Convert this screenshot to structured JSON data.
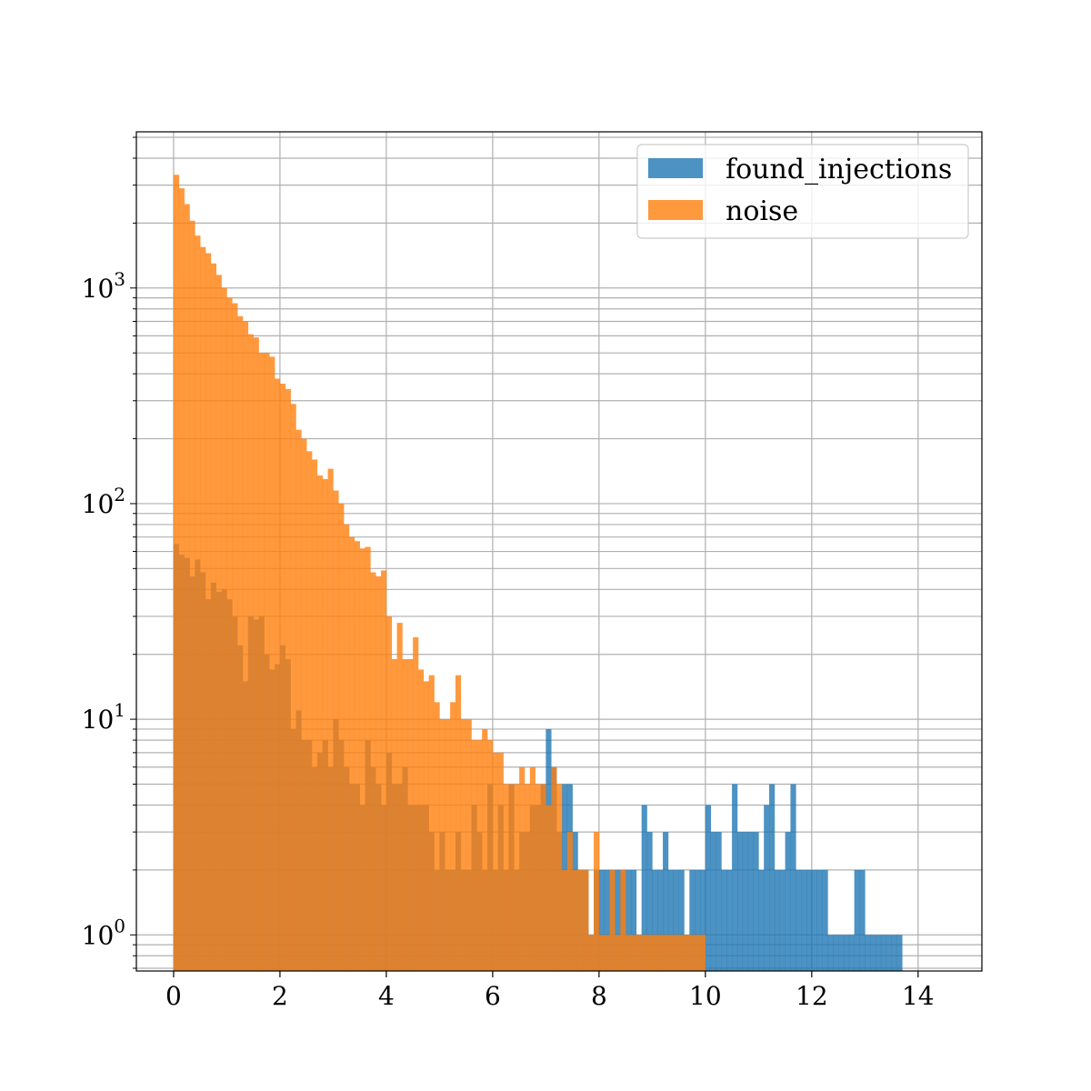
{
  "chart_data": {
    "type": "histogram",
    "xlim": [
      -0.7,
      15.2
    ],
    "ylim": [
      0.68,
      5300
    ],
    "yscale": "log",
    "grid": true,
    "legend_position": "upper right",
    "xticks": [
      0,
      2,
      4,
      6,
      8,
      10,
      12,
      14
    ],
    "xtick_labels": [
      "0",
      "2",
      "4",
      "6",
      "8",
      "10",
      "12",
      "14"
    ],
    "yticks": [
      1,
      10,
      100,
      1000
    ],
    "ytick_labels": [
      {
        "base": "10",
        "exp": "0"
      },
      {
        "base": "10",
        "exp": "1"
      },
      {
        "base": "10",
        "exp": "2"
      },
      {
        "base": "10",
        "exp": "3"
      }
    ],
    "series": [
      {
        "name": "found_injections",
        "color": "#1f77b4",
        "alpha": 0.8,
        "bin_start": 0.0,
        "bin_width": 0.1,
        "counts": [
          65,
          58,
          56,
          46,
          55,
          48,
          36,
          43,
          39,
          40,
          36,
          30,
          22,
          15,
          30,
          29,
          30,
          20,
          17,
          18,
          22,
          19,
          9,
          11,
          8,
          8,
          6,
          7,
          8,
          6,
          10,
          8,
          6,
          5,
          5,
          4,
          8,
          6,
          5,
          4,
          7,
          5,
          5,
          6,
          4,
          4,
          4,
          4,
          3,
          2,
          3,
          2,
          2,
          3,
          2,
          2,
          4,
          3,
          2,
          5,
          2,
          4,
          2,
          5,
          2,
          3,
          3,
          4,
          4,
          5,
          9,
          6,
          3,
          5,
          5,
          3,
          2,
          2,
          1,
          2,
          2,
          2,
          2,
          2,
          2,
          2,
          2,
          1,
          4,
          3,
          2,
          2,
          3,
          2,
          2,
          2,
          1,
          2,
          2,
          2,
          4,
          3,
          3,
          2,
          2,
          5,
          3,
          3,
          3,
          3,
          2,
          4,
          5,
          2,
          2,
          3,
          5,
          2,
          2,
          2,
          2,
          2,
          2,
          1,
          1,
          1,
          1,
          1,
          2,
          2,
          1,
          1,
          1,
          1,
          1,
          1,
          1,
          0,
          0,
          0
        ]
      },
      {
        "name": "noise",
        "color": "#ff7f0e",
        "alpha": 0.8,
        "bin_start": 0.0,
        "bin_width": 0.1,
        "counts": [
          3350,
          2900,
          2450,
          2050,
          1750,
          1550,
          1450,
          1300,
          1150,
          1000,
          900,
          850,
          740,
          700,
          610,
          590,
          500,
          500,
          480,
          380,
          360,
          340,
          290,
          220,
          200,
          175,
          160,
          135,
          130,
          145,
          115,
          100,
          80,
          70,
          67,
          62,
          63,
          48,
          46,
          49,
          30,
          19,
          28,
          19,
          19,
          24,
          17,
          15,
          16,
          12,
          10,
          10,
          12,
          16,
          10,
          10,
          8,
          8,
          9,
          8,
          7,
          7,
          5,
          5,
          5,
          6,
          5,
          6,
          5,
          5,
          4,
          6,
          5,
          2,
          3,
          2,
          2,
          2,
          1,
          3,
          1,
          1,
          2,
          1,
          2,
          1,
          1,
          1,
          1,
          1,
          1,
          1,
          1,
          1,
          1,
          1,
          1,
          1,
          1,
          1,
          0,
          0,
          0,
          0,
          0,
          0,
          0,
          0,
          0,
          0,
          0,
          0,
          0,
          0,
          0,
          0,
          0,
          0,
          0,
          0,
          0,
          0,
          0,
          0,
          0,
          0,
          0,
          0,
          0,
          0,
          0,
          0,
          0,
          0,
          0,
          0,
          0,
          0,
          0,
          0
        ]
      }
    ]
  }
}
